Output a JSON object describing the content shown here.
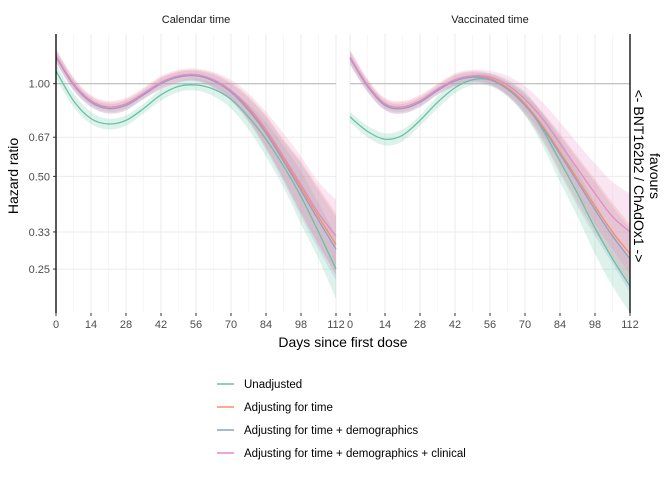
{
  "chart_data": {
    "type": "line",
    "xlabel": "Days since first dose",
    "ylabel": "Hazard ratio",
    "right_label": [
      "favours",
      "<- BNT162b2 / ChAdOx1 ->"
    ],
    "y_scale": "log",
    "xlim": [
      0,
      112
    ],
    "ylim": [
      0.18,
      1.45
    ],
    "x_ticks": [
      0,
      14,
      28,
      42,
      56,
      70,
      84,
      98,
      112
    ],
    "y_ticks": [
      0.25,
      0.33,
      0.5,
      0.67,
      1.0
    ],
    "y_tick_labels": [
      "0.25",
      "0.33",
      "0.50",
      "0.67",
      "1.00"
    ],
    "reference_line": 1.0,
    "grid": true,
    "legend_position": "bottom",
    "colors": {
      "Unadjusted": "#66c2a5",
      "Adjusting for time": "#fc8d62",
      "Adjusting for time + demographics": "#8da0cb",
      "Adjusting for time + demographics + clinical": "#e78ac3"
    },
    "legend": [
      "Unadjusted",
      "Adjusting for time",
      "Adjusting for time + demographics",
      "Adjusting for time + demographics + clinical"
    ],
    "facets": [
      {
        "title": "Calendar time",
        "x": [
          0,
          7,
          14,
          21,
          28,
          35,
          42,
          49,
          56,
          63,
          70,
          77,
          84,
          91,
          98,
          105,
          112
        ],
        "series": [
          {
            "name": "Unadjusted",
            "y": [
              1.1,
              0.88,
              0.77,
              0.74,
              0.76,
              0.83,
              0.92,
              0.98,
              0.99,
              0.96,
              0.89,
              0.78,
              0.66,
              0.54,
              0.43,
              0.33,
              0.25
            ],
            "lower": [
              1.04,
              0.84,
              0.74,
              0.71,
              0.73,
              0.8,
              0.88,
              0.94,
              0.95,
              0.91,
              0.83,
              0.71,
              0.58,
              0.46,
              0.35,
              0.27,
              0.2
            ],
            "upper": [
              1.16,
              0.93,
              0.81,
              0.77,
              0.79,
              0.86,
              0.96,
              1.02,
              1.04,
              1.01,
              0.95,
              0.86,
              0.75,
              0.63,
              0.52,
              0.41,
              0.32
            ]
          },
          {
            "name": "Adjusting for time",
            "y": [
              1.23,
              1.0,
              0.88,
              0.84,
              0.86,
              0.93,
              1.01,
              1.06,
              1.07,
              1.03,
              0.95,
              0.83,
              0.7,
              0.57,
              0.46,
              0.37,
              0.3
            ],
            "lower": [
              1.18,
              0.96,
              0.85,
              0.81,
              0.83,
              0.9,
              0.97,
              1.02,
              1.03,
              0.98,
              0.89,
              0.76,
              0.62,
              0.49,
              0.38,
              0.3,
              0.24
            ],
            "upper": [
              1.29,
              1.04,
              0.91,
              0.87,
              0.89,
              0.96,
              1.05,
              1.1,
              1.11,
              1.08,
              1.01,
              0.91,
              0.79,
              0.66,
              0.56,
              0.46,
              0.38
            ]
          },
          {
            "name": "Adjusting for time + demographics",
            "y": [
              1.22,
              0.99,
              0.87,
              0.83,
              0.85,
              0.92,
              1.0,
              1.05,
              1.06,
              1.02,
              0.94,
              0.82,
              0.69,
              0.56,
              0.45,
              0.36,
              0.29
            ],
            "lower": [
              1.17,
              0.95,
              0.84,
              0.8,
              0.82,
              0.89,
              0.96,
              1.01,
              1.02,
              0.97,
              0.88,
              0.75,
              0.61,
              0.48,
              0.37,
              0.29,
              0.23
            ],
            "upper": [
              1.28,
              1.03,
              0.9,
              0.86,
              0.88,
              0.95,
              1.04,
              1.09,
              1.1,
              1.07,
              1.0,
              0.9,
              0.78,
              0.65,
              0.55,
              0.45,
              0.37
            ]
          },
          {
            "name": "Adjusting for time + demographics + clinical",
            "y": [
              1.23,
              1.0,
              0.88,
              0.84,
              0.86,
              0.93,
              1.01,
              1.06,
              1.07,
              1.03,
              0.95,
              0.84,
              0.71,
              0.58,
              0.47,
              0.38,
              0.32
            ],
            "lower": [
              1.17,
              0.95,
              0.84,
              0.8,
              0.82,
              0.89,
              0.96,
              1.01,
              1.02,
              0.97,
              0.88,
              0.76,
              0.62,
              0.49,
              0.38,
              0.3,
              0.24
            ],
            "upper": [
              1.3,
              1.05,
              0.92,
              0.88,
              0.9,
              0.97,
              1.06,
              1.11,
              1.12,
              1.09,
              1.03,
              0.93,
              0.81,
              0.69,
              0.58,
              0.48,
              0.42
            ]
          }
        ]
      },
      {
        "title": "Vaccinated time",
        "x": [
          0,
          7,
          14,
          21,
          28,
          35,
          42,
          49,
          56,
          63,
          70,
          77,
          84,
          91,
          98,
          105,
          112
        ],
        "series": [
          {
            "name": "Unadjusted",
            "y": [
              0.78,
              0.7,
              0.66,
              0.68,
              0.76,
              0.87,
              0.97,
              1.03,
              1.03,
              0.97,
              0.86,
              0.71,
              0.56,
              0.44,
              0.34,
              0.27,
              0.22
            ],
            "lower": [
              0.75,
              0.67,
              0.63,
              0.65,
              0.73,
              0.83,
              0.93,
              0.99,
              0.98,
              0.91,
              0.79,
              0.63,
              0.48,
              0.37,
              0.28,
              0.22,
              0.18
            ],
            "upper": [
              0.81,
              0.73,
              0.69,
              0.71,
              0.79,
              0.91,
              1.01,
              1.07,
              1.08,
              1.03,
              0.94,
              0.8,
              0.66,
              0.52,
              0.41,
              0.33,
              0.27
            ]
          },
          {
            "name": "Adjusting for time",
            "y": [
              1.22,
              0.99,
              0.86,
              0.84,
              0.88,
              0.96,
              1.03,
              1.06,
              1.04,
              0.97,
              0.86,
              0.73,
              0.6,
              0.49,
              0.4,
              0.33,
              0.28
            ],
            "lower": [
              1.16,
              0.95,
              0.83,
              0.81,
              0.85,
              0.93,
              0.99,
              1.02,
              1.0,
              0.92,
              0.8,
              0.66,
              0.52,
              0.41,
              0.33,
              0.27,
              0.22
            ],
            "upper": [
              1.28,
              1.03,
              0.89,
              0.87,
              0.91,
              0.99,
              1.07,
              1.1,
              1.08,
              1.02,
              0.93,
              0.81,
              0.69,
              0.58,
              0.49,
              0.41,
              0.35
            ]
          },
          {
            "name": "Adjusting for time + demographics",
            "y": [
              1.21,
              0.98,
              0.85,
              0.83,
              0.87,
              0.95,
              1.02,
              1.05,
              1.03,
              0.96,
              0.85,
              0.72,
              0.59,
              0.48,
              0.39,
              0.32,
              0.27
            ],
            "lower": [
              1.15,
              0.94,
              0.82,
              0.8,
              0.84,
              0.92,
              0.98,
              1.01,
              0.99,
              0.91,
              0.79,
              0.65,
              0.51,
              0.4,
              0.32,
              0.26,
              0.21
            ],
            "upper": [
              1.27,
              1.02,
              0.88,
              0.86,
              0.9,
              0.98,
              1.06,
              1.09,
              1.07,
              1.01,
              0.92,
              0.8,
              0.68,
              0.57,
              0.48,
              0.4,
              0.34
            ]
          },
          {
            "name": "Adjusting for time + demographics + clinical",
            "y": [
              1.22,
              0.99,
              0.86,
              0.84,
              0.88,
              0.96,
              1.03,
              1.06,
              1.05,
              0.99,
              0.89,
              0.77,
              0.64,
              0.53,
              0.44,
              0.37,
              0.33
            ],
            "lower": [
              1.16,
              0.94,
              0.82,
              0.8,
              0.84,
              0.92,
              0.98,
              1.01,
              0.99,
              0.92,
              0.81,
              0.68,
              0.55,
              0.44,
              0.35,
              0.29,
              0.24
            ],
            "upper": [
              1.29,
              1.04,
              0.9,
              0.88,
              0.92,
              1.0,
              1.08,
              1.11,
              1.1,
              1.06,
              0.98,
              0.87,
              0.75,
              0.64,
              0.55,
              0.48,
              0.44
            ]
          }
        ]
      }
    ]
  }
}
